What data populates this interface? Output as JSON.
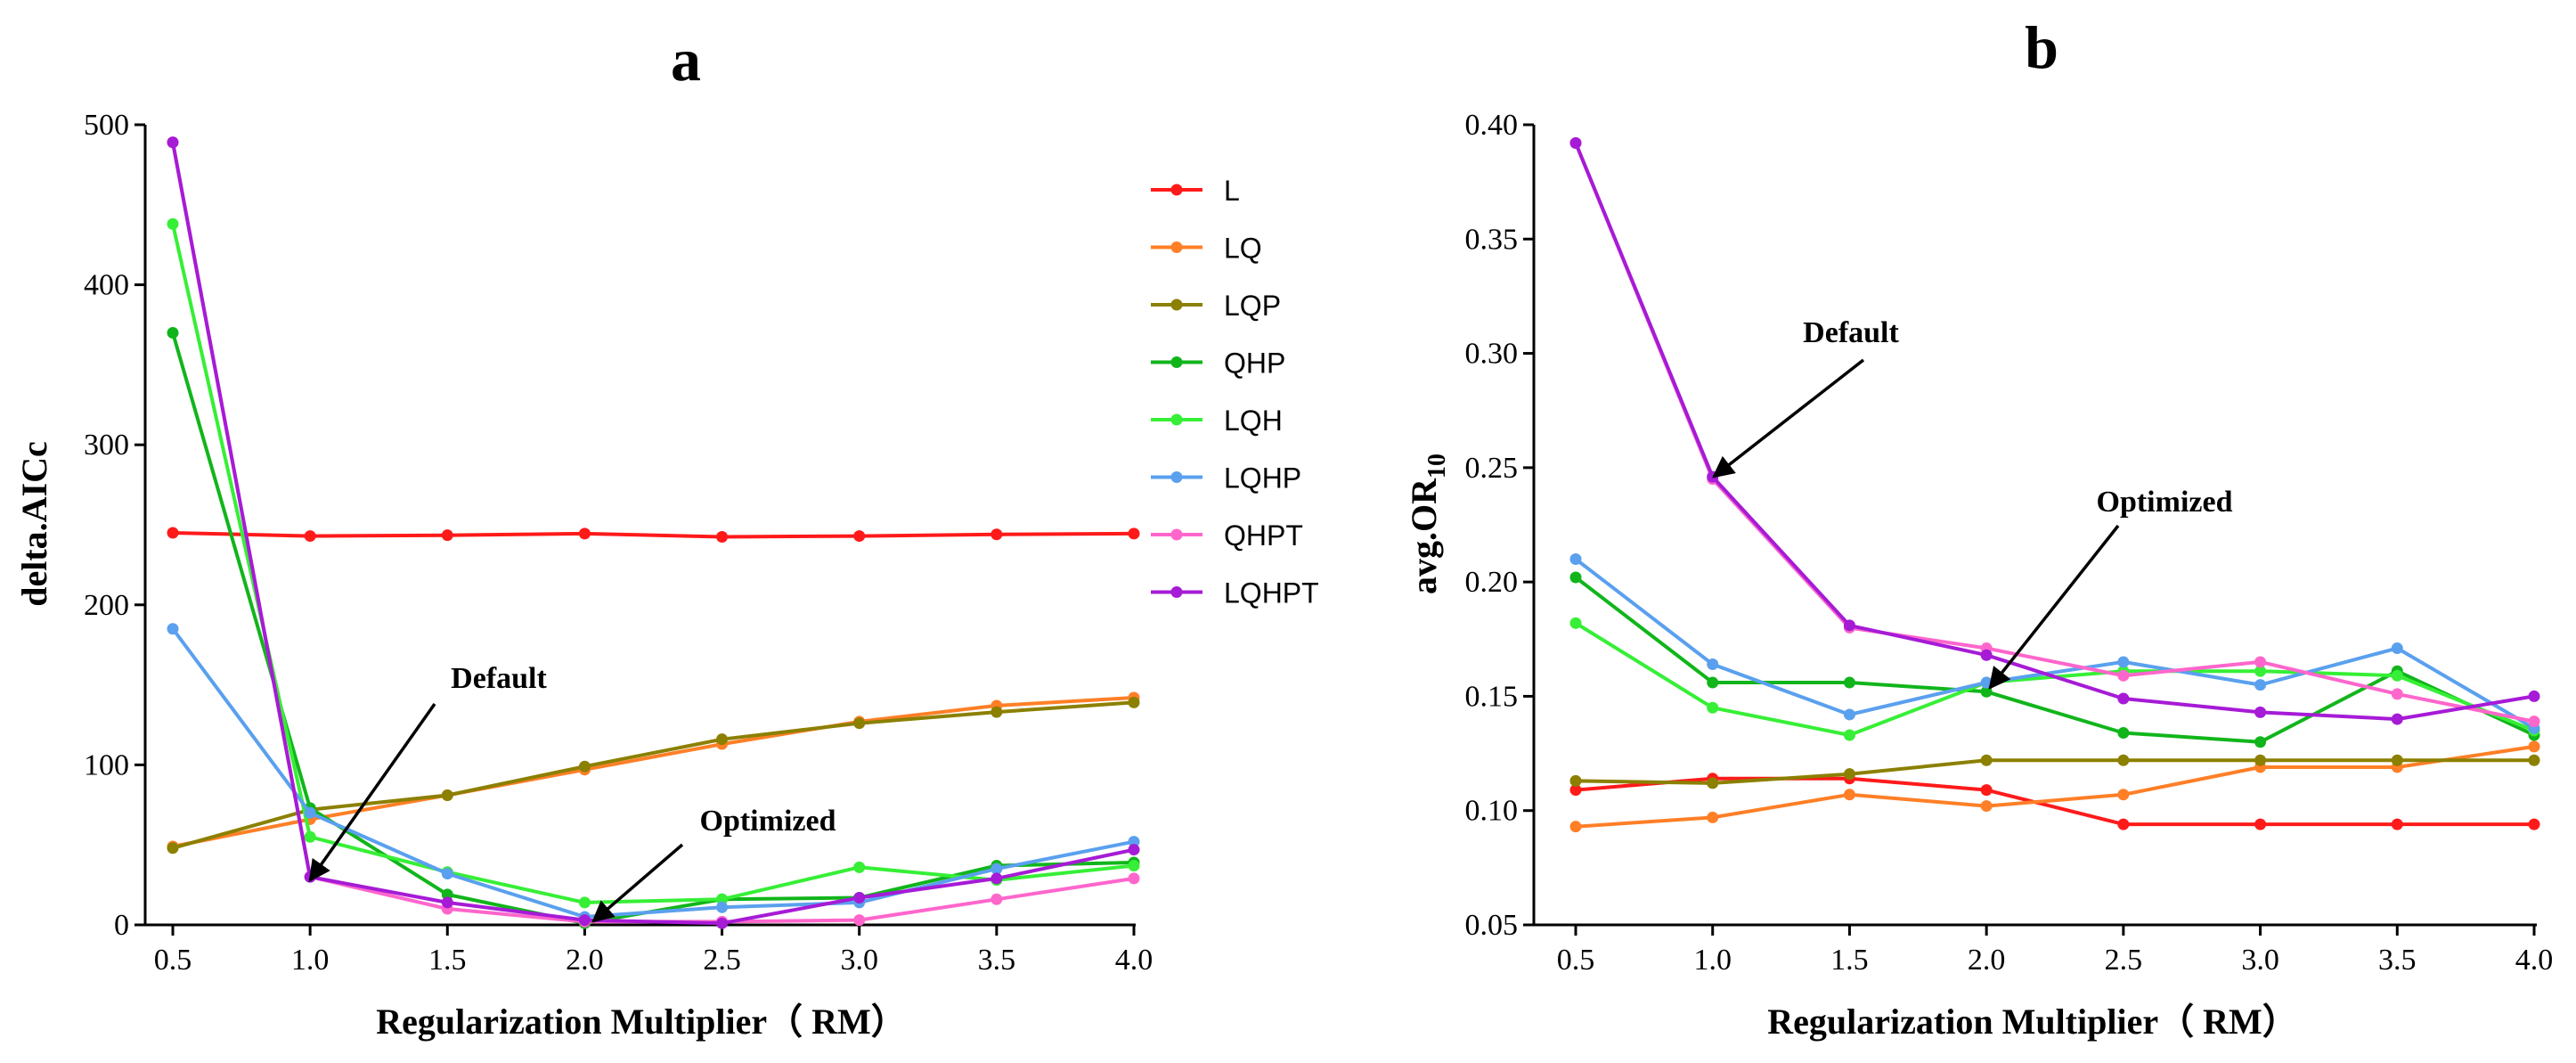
{
  "chart_data": [
    {
      "panel": "a",
      "type": "line",
      "title": "a",
      "xlabel": "Regularization Multiplier（ RM）",
      "ylabel": "delta.AICc",
      "x": [
        0.5,
        1.0,
        1.5,
        2.0,
        2.5,
        3.0,
        3.5,
        4.0
      ],
      "xticks": [
        "0.5",
        "1.0",
        "1.5",
        "2.0",
        "2.5",
        "3.0",
        "3.5",
        "4.0"
      ],
      "xlim": [
        0.5,
        4.0
      ],
      "ylim": [
        0,
        500
      ],
      "yticks": [
        "0",
        "100",
        "200",
        "300",
        "400",
        "500"
      ],
      "legend_position": "right",
      "series": [
        {
          "name": "L",
          "color": "#ff1a1a",
          "values": [
            245,
            243,
            243.5,
            244.5,
            242.5,
            243,
            244,
            244.5
          ]
        },
        {
          "name": "LQ",
          "color": "#ff7f27",
          "values": [
            49,
            66,
            81,
            97,
            113,
            127,
            137,
            142
          ]
        },
        {
          "name": "LQP",
          "color": "#8b8000",
          "values": [
            48,
            72,
            81,
            99,
            116,
            126,
            133,
            139
          ]
        },
        {
          "name": "QHP",
          "color": "#11b51b",
          "values": [
            370,
            73,
            19,
            1,
            16,
            17,
            37,
            39
          ]
        },
        {
          "name": "LQH",
          "color": "#36ef36",
          "values": [
            438,
            55,
            33,
            14,
            16,
            36,
            28,
            37
          ]
        },
        {
          "name": "LQHP",
          "color": "#5aa0ee",
          "values": [
            185,
            70,
            32,
            5,
            11,
            14,
            35,
            52
          ]
        },
        {
          "name": "QHPT",
          "color": "#ff66cc",
          "values": [
            489,
            30,
            10,
            2,
            2,
            3,
            16,
            29
          ]
        },
        {
          "name": "LQHPT",
          "color": "#a61bd6",
          "values": [
            489,
            30,
            14,
            3,
            1,
            17,
            29,
            47
          ]
        }
      ],
      "annotations": [
        {
          "text": "Default",
          "x": 1.0,
          "y": 30
        },
        {
          "text": "Optimized",
          "x": 2.0,
          "y": 0
        }
      ]
    },
    {
      "panel": "b",
      "type": "line",
      "title": "b",
      "xlabel": "Regularization Multiplier（ RM）",
      "ylabel": "avg.OR",
      "ylabel_subscript": "10",
      "x": [
        0.5,
        1.0,
        1.5,
        2.0,
        2.5,
        3.0,
        3.5,
        4.0
      ],
      "xticks": [
        "0.5",
        "1.0",
        "1.5",
        "2.0",
        "2.5",
        "3.0",
        "3.5",
        "4.0"
      ],
      "xlim": [
        0.5,
        4.0
      ],
      "ylim": [
        0.05,
        0.4
      ],
      "yticks": [
        "0.05",
        "0.10",
        "0.15",
        "0.20",
        "0.25",
        "0.30",
        "0.35",
        "0.40"
      ],
      "series": [
        {
          "name": "L",
          "color": "#ff1a1a",
          "values": [
            0.109,
            0.114,
            0.114,
            0.109,
            0.094,
            0.094,
            0.094,
            0.094
          ]
        },
        {
          "name": "LQ",
          "color": "#ff7f27",
          "values": [
            0.093,
            0.097,
            0.107,
            0.102,
            0.107,
            0.119,
            0.119,
            0.128
          ]
        },
        {
          "name": "LQP",
          "color": "#8b8000",
          "values": [
            0.113,
            0.112,
            0.116,
            0.122,
            0.122,
            0.122,
            0.122,
            0.122
          ]
        },
        {
          "name": "QHP",
          "color": "#11b51b",
          "values": [
            0.202,
            0.156,
            0.156,
            0.152,
            0.134,
            0.13,
            0.161,
            0.133
          ]
        },
        {
          "name": "LQH",
          "color": "#36ef36",
          "values": [
            0.182,
            0.145,
            0.133,
            0.156,
            0.161,
            0.161,
            0.159,
            0.135
          ]
        },
        {
          "name": "LQHP",
          "color": "#5aa0ee",
          "values": [
            0.21,
            0.164,
            0.142,
            0.156,
            0.165,
            0.155,
            0.171,
            0.136
          ]
        },
        {
          "name": "QHPT",
          "color": "#ff66cc",
          "values": [
            0.392,
            0.245,
            0.18,
            0.171,
            0.159,
            0.165,
            0.151,
            0.139
          ]
        },
        {
          "name": "LQHPT",
          "color": "#a61bd6",
          "values": [
            0.392,
            0.246,
            0.181,
            0.168,
            0.149,
            0.143,
            0.14,
            0.15
          ]
        }
      ],
      "annotations": [
        {
          "text": "Default",
          "x": 1.0,
          "y": 0.246
        },
        {
          "text": "Optimized",
          "x": 2.0,
          "y": 0.152
        }
      ]
    }
  ]
}
